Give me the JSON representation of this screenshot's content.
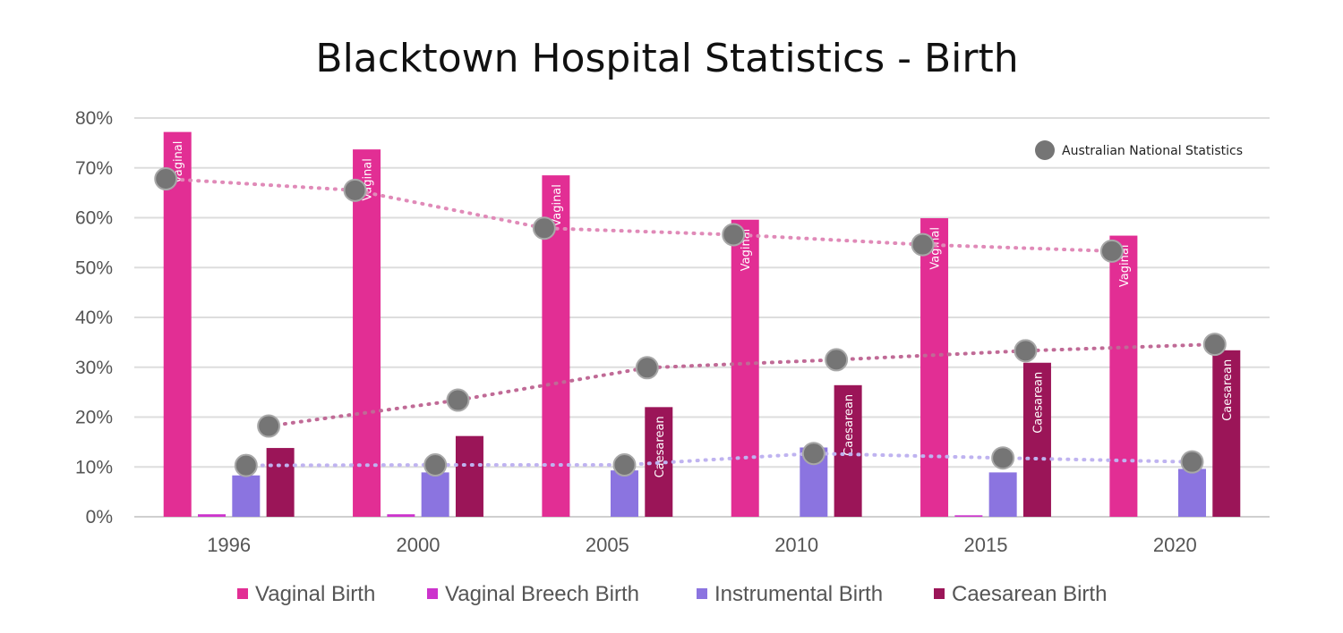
{
  "chart_data": {
    "type": "bar",
    "title": "Blacktown Hospital Statistics - Birth",
    "xlabel": "",
    "ylabel": "",
    "ylim": [
      0,
      80
    ],
    "yticks": [
      "0%",
      "10%",
      "20%",
      "30%",
      "40%",
      "50%",
      "60%",
      "70%",
      "80%"
    ],
    "categories": [
      "1996",
      "2000",
      "2005",
      "2010",
      "2015",
      "2020"
    ],
    "series": [
      {
        "name": "Vaginal Birth",
        "color": "#e22e94",
        "values": [
          77.2,
          73.7,
          68.5,
          59.6,
          59.9,
          56.4
        ],
        "bar_label": "Vaginal"
      },
      {
        "name": "Vaginal Breech Birth",
        "color": "#cc33cc",
        "values": [
          0.5,
          0.5,
          0,
          0,
          0.3,
          0
        ],
        "bar_label": ""
      },
      {
        "name": "Instrumental Birth",
        "color": "#8b74e0",
        "values": [
          8.3,
          8.9,
          9.3,
          13.9,
          8.9,
          9.6
        ],
        "bar_label": ""
      },
      {
        "name": "Caesarean Birth",
        "color": "#9b1558",
        "values": [
          13.8,
          16.2,
          22.0,
          26.4,
          30.9,
          33.4
        ],
        "bar_label": "Caesarean"
      }
    ],
    "caesarean_label_years": [
      "2005",
      "2010",
      "2015",
      "2020"
    ],
    "national_statistics": {
      "label": "Australian National Statistics",
      "marker_color": "#757575",
      "vaginal": {
        "line_color": "#e08ab8",
        "values": [
          67.8,
          65.5,
          57.9,
          56.6,
          54.6,
          53.3
        ]
      },
      "caesarean": {
        "line_color": "#c06a96",
        "values": [
          18.2,
          23.4,
          29.9,
          31.5,
          33.3,
          34.6
        ]
      },
      "instrumental": {
        "line_color": "#bfb3f0",
        "values": [
          10.3,
          10.4,
          10.4,
          12.7,
          11.8,
          11.0
        ]
      }
    }
  }
}
